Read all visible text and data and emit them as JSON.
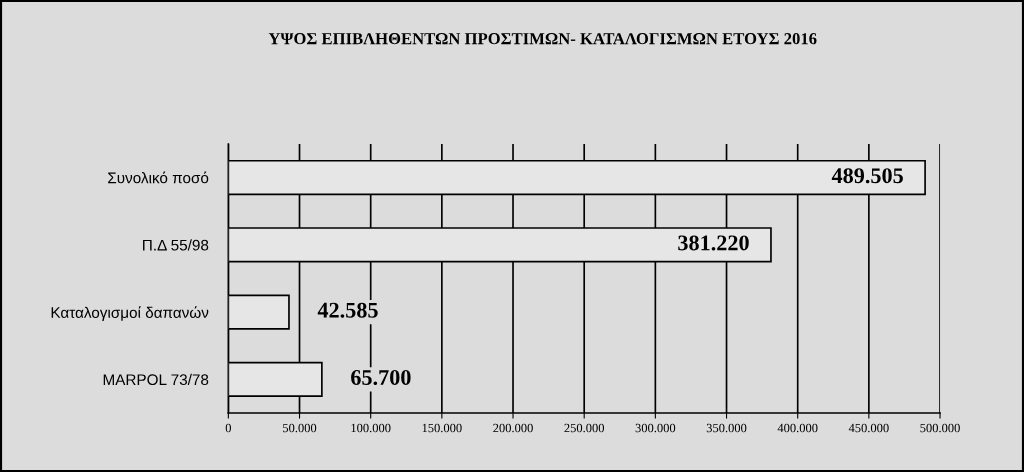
{
  "chart_data": {
    "type": "bar",
    "orientation": "horizontal",
    "title": "ΥΨΟΣ ΕΠΙΒΛΗΘΕΝΤΩΝ ΠΡΟΣΤΙΜΩΝ- ΚΑΤΑΛΟΓΙΣΜΩΝ ΕΤΟΥΣ 2016",
    "categories": [
      "Συνολικό ποσό",
      "Π.Δ 55/98",
      "Καταλογισμοί δαπανών",
      "MARPOL 73/78"
    ],
    "values": [
      489505,
      381220,
      42585,
      65700
    ],
    "color": "#e6e6e6",
    "value_labels": [
      "489.505",
      "381.220",
      "42.585",
      "65.700"
    ],
    "xlim": [
      0,
      500000
    ],
    "xticks": [
      0,
      {
        "value": 50000,
        "label": "50.000"
      },
      {
        "value": 100000,
        "label": "100.000"
      },
      {
        "value": 150000,
        "label": "150.000"
      },
      {
        "value": 200000,
        "label": "200.000"
      },
      {
        "value": 250000,
        "label": "250.000"
      },
      {
        "value": 300000,
        "label": "300.000"
      },
      {
        "value": 350000,
        "label": "350.000"
      },
      {
        "value": 400000,
        "label": "400.000"
      },
      {
        "value": 450000,
        "label": "450.000"
      },
      {
        "value": 500000,
        "label": "500.000"
      }
    ],
    "grid": "x",
    "legend": false
  }
}
